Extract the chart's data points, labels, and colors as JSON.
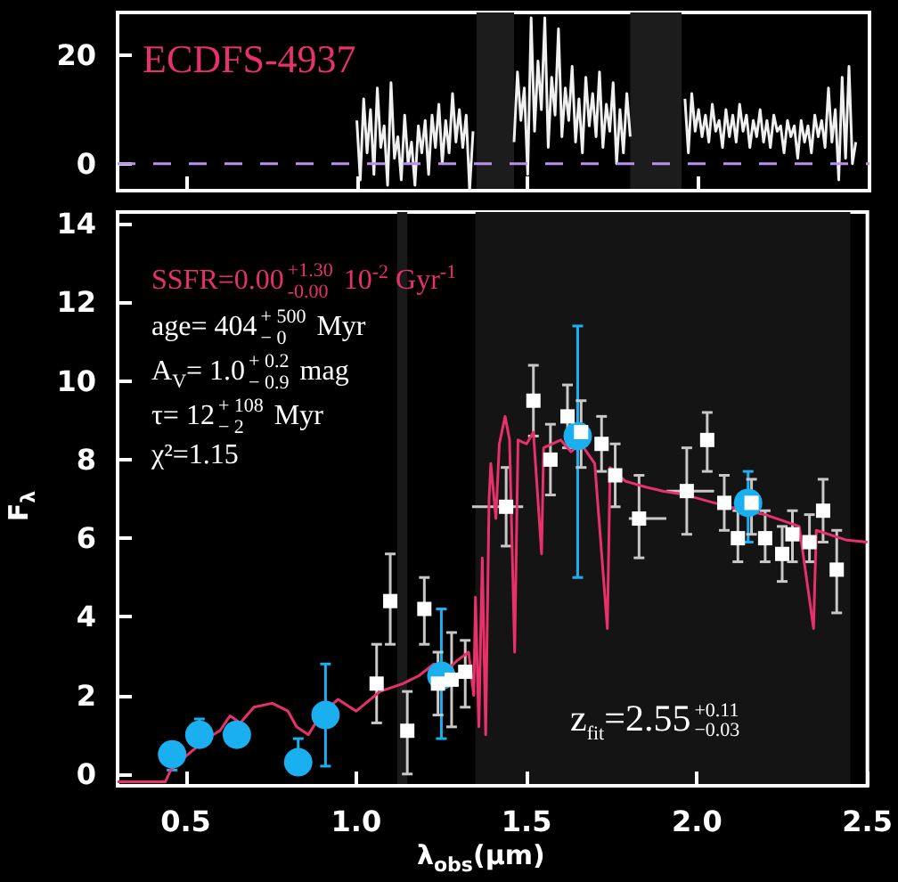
{
  "chart_data": [
    {
      "type": "line",
      "title": "ECDFS-4937",
      "xlim": [
        0.3,
        2.5
      ],
      "ylim": [
        -5,
        28
      ],
      "xticks": [
        0.5,
        1,
        1.5,
        2,
        2.5
      ],
      "yticks": [
        0,
        20
      ],
      "tick_labels": "y",
      "ref_lines": [
        {
          "axis": "y",
          "value": 0,
          "color": "#b890f0",
          "line_style": "dashed"
        }
      ],
      "bands": [
        {
          "axis": "x",
          "from": 1.35,
          "to": 1.46,
          "color": "#1c1c1c"
        },
        {
          "axis": "x",
          "from": 1.8,
          "to": 1.95,
          "color": "#1c1c1c"
        }
      ],
      "series": [
        {
          "color": "#f0f0f0",
          "x": [
            1.0,
            1.01,
            1.02,
            1.03,
            1.04,
            1.05,
            1.06,
            1.07,
            1.08,
            1.09,
            1.1,
            1.11,
            1.12,
            1.13,
            1.14,
            1.15,
            1.16,
            1.17,
            1.18,
            1.19,
            1.2,
            1.21,
            1.22,
            1.23,
            1.24,
            1.25,
            1.26,
            1.27,
            1.28,
            1.29,
            1.3,
            1.31,
            1.32,
            1.33,
            1.34,
            1.4,
            1.46,
            1.47,
            1.48,
            1.49,
            1.5,
            1.51,
            1.52,
            1.53,
            1.54,
            1.55,
            1.56,
            1.57,
            1.58,
            1.59,
            1.6,
            1.61,
            1.62,
            1.63,
            1.64,
            1.65,
            1.66,
            1.67,
            1.68,
            1.69,
            1.7,
            1.71,
            1.72,
            1.73,
            1.74,
            1.75,
            1.76,
            1.77,
            1.78,
            1.79,
            1.8,
            1.88,
            1.96,
            1.97,
            1.98,
            1.99,
            2.0,
            2.01,
            2.02,
            2.03,
            2.04,
            2.05,
            2.06,
            2.07,
            2.08,
            2.09,
            2.1,
            2.11,
            2.12,
            2.13,
            2.14,
            2.15,
            2.16,
            2.17,
            2.18,
            2.19,
            2.2,
            2.21,
            2.22,
            2.23,
            2.24,
            2.25,
            2.26,
            2.27,
            2.28,
            2.29,
            2.3,
            2.31,
            2.32,
            2.33,
            2.34,
            2.35,
            2.36,
            2.37,
            2.38,
            2.39,
            2.4,
            2.41,
            2.42,
            2.43,
            2.44,
            2.45,
            2.46
          ],
          "values": [
            8,
            -3,
            12,
            2,
            10,
            -2,
            14,
            3,
            7,
            -4,
            15,
            1,
            5,
            -3,
            9,
            0,
            4,
            -4,
            7,
            2,
            8,
            -2,
            9,
            3,
            11,
            0,
            8,
            2,
            13,
            4,
            10,
            3,
            9,
            -5,
            6,
            null,
            4,
            17,
            8,
            14,
            -2,
            27,
            6,
            19,
            10,
            27,
            3,
            16,
            9,
            25,
            5,
            14,
            8,
            18,
            4,
            12,
            2,
            16,
            7,
            13,
            5,
            17,
            3,
            11,
            6,
            15,
            0,
            10,
            2,
            13,
            5,
            null,
            12,
            2,
            13,
            6,
            10,
            5,
            9,
            4,
            11,
            6,
            8,
            3,
            10,
            5,
            9,
            4,
            11,
            6,
            9,
            3,
            8,
            5,
            10,
            4,
            8,
            3,
            9,
            6,
            7,
            2,
            8,
            5,
            7,
            1,
            8,
            4,
            7,
            2,
            9,
            5,
            8,
            3,
            14,
            4,
            10,
            -3,
            16,
            1,
            18,
            0,
            4
          ]
        }
      ]
    },
    {
      "type": "line",
      "xlabel": "λ$_{obs}$(μm)",
      "ylabel": "F$_{λ}$",
      "xlim": [
        0.3,
        2.5
      ],
      "ylim": [
        -0.3,
        14.3
      ],
      "xticks": [
        0.5,
        {
          "value": 1,
          "label": "1.0"
        },
        1.5,
        {
          "value": 2,
          "label": "2.0"
        },
        2.5
      ],
      "yticks": [
        0,
        2,
        4,
        6,
        8,
        10,
        12,
        14
      ],
      "bands": [
        {
          "axis": "x",
          "from": 1.12,
          "to": 1.15,
          "color": "#1a1a1a"
        },
        {
          "axis": "x",
          "from": 1.35,
          "to": 2.45,
          "color": "#141414"
        }
      ],
      "annotations": [
        "SSFR=0.00$^{+1.30}$$_{-0.00}$ 10$^{-2}$ Gyr$^{-1}$",
        "age= 404$^{+ 500}$$_{− 0}$ Myr",
        "A$_{V}$= 1.0$^{+ 0.2}$$_{− 0.9}$ mag",
        "τ= 12$^{+ 108}$$_{− 2}$ Myr",
        "χ²=1.15",
        "z$_{fit}$=2.55$^{+0.11}$$_{−0.03}$"
      ],
      "series": [
        {
          "color": "#e8306a",
          "marker": "none",
          "x": [
            0.3,
            0.44,
            0.456,
            0.5,
            0.562,
            0.6,
            0.63,
            0.66,
            0.7,
            0.754,
            0.8,
            0.825,
            0.86,
            0.895,
            0.947,
            1.0,
            1.07,
            1.137,
            1.184,
            1.228,
            1.26,
            1.298,
            1.33,
            1.345,
            1.35,
            1.36,
            1.37,
            1.38,
            1.39,
            1.395,
            1.41,
            1.42,
            1.437,
            1.45,
            1.465,
            1.475,
            1.5,
            1.52,
            1.544,
            1.55,
            1.6,
            1.63,
            1.66,
            1.7,
            1.737,
            1.745,
            1.79,
            1.85,
            1.9,
            1.967,
            2.05,
            2.14,
            2.2,
            2.3,
            2.342,
            2.35,
            2.44,
            2.5
          ],
          "values": [
            -0.2,
            -0.2,
            0.1,
            0.45,
            0.9,
            1.1,
            1.48,
            1.3,
            1.7,
            1.8,
            1.6,
            1.2,
            1.0,
            1.5,
            1.9,
            1.6,
            2.1,
            2.3,
            2.5,
            2.8,
            2.6,
            2.9,
            3.1,
            2.0,
            4.5,
            1.2,
            5.5,
            1.0,
            7.0,
            7.9,
            6.5,
            8.4,
            9.1,
            8.5,
            3.1,
            8.5,
            8.4,
            8.7,
            5.6,
            8.3,
            8.5,
            8.2,
            8.4,
            7.9,
            3.7,
            7.8,
            7.45,
            7.3,
            7.2,
            7.1,
            6.9,
            6.7,
            6.6,
            6.3,
            3.7,
            6.2,
            5.95,
            5.9
          ]
        },
        {
          "type": "scatter",
          "color": "#ffffff",
          "marker": "square",
          "x": [
            1.06,
            1.1,
            1.15,
            1.2,
            1.24,
            1.28,
            1.32,
            1.44,
            1.52,
            1.57,
            1.62,
            1.66,
            1.72,
            1.76,
            1.83,
            1.97,
            2.03,
            2.08,
            2.12,
            2.16,
            2.2,
            2.25,
            2.28,
            2.33,
            2.37,
            2.41
          ],
          "values": [
            2.3,
            4.4,
            1.1,
            4.2,
            2.3,
            2.4,
            2.6,
            6.8,
            9.5,
            8.0,
            9.1,
            8.7,
            8.4,
            7.6,
            6.5,
            7.2,
            8.5,
            6.9,
            6.0,
            6.9,
            6.0,
            5.6,
            6.1,
            5.9,
            6.7,
            5.2
          ],
          "errors": [
            [
              1.3,
              3.3
            ],
            [
              3.3,
              5.6
            ],
            [
              0,
              2.1
            ],
            [
              3.3,
              5.0
            ],
            [
              1.5,
              3.1
            ],
            [
              1.2,
              3.6
            ],
            [
              1.7,
              3.4
            ],
            [
              5.8,
              7.8
            ],
            [
              8.6,
              10.4
            ],
            [
              7.1,
              8.9
            ],
            [
              8.3,
              9.9
            ],
            [
              7.8,
              9.5
            ],
            [
              7.7,
              9.1
            ],
            [
              6.8,
              8.4
            ],
            [
              5.5,
              7.6
            ],
            [
              6.1,
              8.3
            ],
            [
              7.7,
              9.2
            ],
            [
              6.2,
              7.6
            ],
            [
              5.4,
              6.7
            ],
            [
              6.1,
              7.5
            ],
            [
              5.4,
              6.7
            ],
            [
              4.9,
              6.3
            ],
            [
              5.4,
              6.7
            ],
            [
              5.4,
              6.6
            ],
            [
              5.9,
              7.5
            ],
            [
              4.1,
              6.2
            ]
          ],
          "xerrors": [
            null,
            null,
            null,
            null,
            null,
            null,
            null,
            [
              1.34,
              1.49
            ],
            null,
            null,
            null,
            null,
            null,
            null,
            [
              1.8,
              1.91
            ],
            [
              1.91,
              2.05
            ],
            null,
            null,
            null,
            null,
            null,
            null,
            null,
            null,
            null,
            null
          ]
        },
        {
          "type": "scatter",
          "color": "#1ab0f0",
          "marker": "circle",
          "x": [
            0.46,
            0.54,
            0.65,
            0.83,
            0.91,
            1.25,
            1.65,
            2.15
          ],
          "values": [
            0.5,
            1.0,
            1.0,
            0.3,
            1.5,
            2.5,
            8.6,
            6.9
          ],
          "errors": [
            [
              0.1,
              0.8
            ],
            [
              0.7,
              1.4
            ],
            [
              0.7,
              1.3
            ],
            [
              0,
              0.9
            ],
            [
              0.2,
              2.8
            ],
            [
              0.9,
              4.2
            ],
            [
              5.0,
              11.4
            ],
            [
              5.9,
              7.7
            ]
          ]
        }
      ]
    }
  ]
}
